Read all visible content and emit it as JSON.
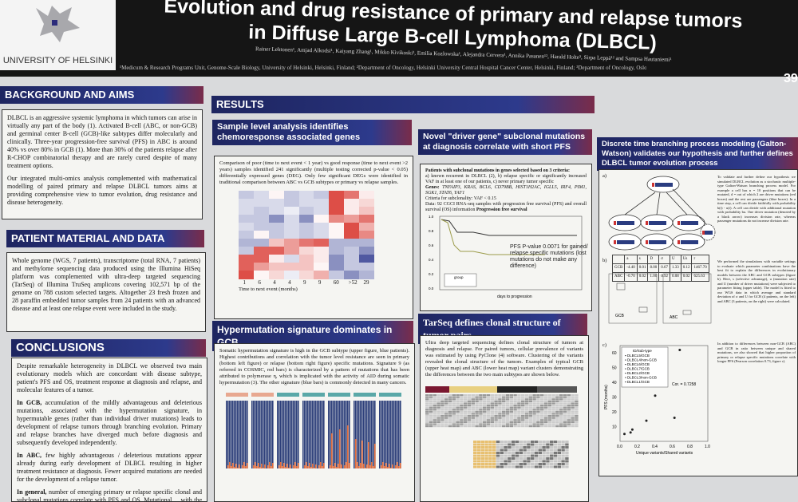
{
  "header": {
    "logo_text": "UNIVERSITY OF HELSINKI",
    "title_line1": "Evolution and drug resistance of primary and relapse tumors",
    "title_line2": "in Diffuse Large B-cell Lymphoma (DLBCL)",
    "authors": "Rainer Lehtonen¹, Amjad Alkodsi¹, Kaiyang Zhang¹, Mikko Kivikoski¹, Emilia Kozlowska¹, Alejandra Cervera¹, Annika Pasanen¹², Harald Holte³, Sirpa Leppä¹² and Sampsa Hautaniemi¹",
    "affiliations": "¹Medicum & Research Programs Unit, Genome-Scale Biology, University of Helsinki, Helsinki, Finland; ²Department of Oncology, Helsinki University Central Hospital Cancer Center, Helsinki, Finland; ³Department of Oncology, Oslo University Hospital, Oslo, Norway",
    "board_number": "39"
  },
  "background": {
    "heading": "BACKGROUND AND AIMS",
    "p1": "DLBCL is an aggressive systemic lymphoma in which tumors can arise in virtually any part of the body (1). Activated B-cell (ABC, or non-GCB) and germinal center B-cell (GCB)-like subtypes differ molecularly and clinically. Three-year progression-free survival (PFS) in ABC is around 40% vs over 80% in GCB (1). More than 30% of the patients relapse after R-CHOP combinatorial therapy and are rarely cured despite of many treatment options.",
    "p2": "Our integrated multi-omics analysis complemented with mathematical modelling of paired primary and relapse DLBCL tumors aims at providing comprehensive view to tumor evolution, drug resistance and disease heterogeneity."
  },
  "patient": {
    "heading": "PATIENT MATERIAL AND DATA",
    "p1": "Whole genome (WGS, 7 patients), transcriptome (total RNA, 7 patients) and methylome sequencing data produced using the Illumina HiSeq platform was complemented with ultra-deep targeted sequencing (TarSeq) of Illumina TruSeq amplicons covering 102,571 bp of the genome on 788 custom selected targets. Altogether 23 fresh frozen and 28 paraffin embedded tumor samples from 24 patients with an advanced disease and at least one relapse event were included in the study."
  },
  "conclusions": {
    "heading": "CONCLUSIONS",
    "p1": "Despite remarkable heterogeneity in DLBCL we observed two main evolutionary models which are concordant with disease subtype, patient's PFS and OS, treatment response at diagnosis and relapse, and molecular features of a tumor.",
    "p2_bold": "In GCB,",
    "p2": " accumulation of the mildly advantageous and deleterious mutations, associated with the hypermutation signature, in hypermutable genes (rather than individual driver mutations) leads to development of relapse tumors through branching evolution. Primary and relapse branches have diverged much before diagnosis and subsequently developed independently.",
    "p3_bold": "In ABC,",
    "p3": " few highly advantageous / deleterious mutations appear already during early development of DLBCL resulting in higher treatment resistance at diagnosis. Fewer acquired mutations are needed for the development of a relapse tumor.",
    "p4_bold": "In general,",
    "p4": " number of emerging primary or relapse specific clonal and subclonal mutations correlate with PFS and OS. Mutational ... with the inferred evolutionary models ... of the somatic"
  },
  "results": {
    "heading": "RESULTS"
  },
  "sample": {
    "heading": "Sample level analysis identifies chemoresponse associated genes",
    "text": "Comparison of poor (time to next event < 1 year) vs good response (time to next event >2 years) samples identified 241 significantly (multiple testing corrected p-value < 0.05) differentially expressed genes (DEG). Only few significant DEGs were identified in traditional comparison between ABC vs GCB subtypes or primary vs relapse samples.",
    "xticks": [
      "1",
      "6",
      "4",
      "4",
      "9",
      "9",
      "60",
      ">52",
      "29"
    ],
    "xlabel": "Time to next event (months)",
    "heatmap": [
      [
        -0.3,
        -0.2,
        0.05,
        -0.3,
        -0.2,
        -0.3,
        0.9,
        0.7,
        0.1
      ],
      [
        -0.2,
        -0.2,
        -0.2,
        -0.3,
        -0.2,
        -0.2,
        0.9,
        0.1,
        0.2
      ],
      [
        -0.2,
        -0.3,
        -0.2,
        -0.1,
        -0.3,
        -0.2,
        0.9,
        0.1,
        0.3
      ],
      [
        -0.3,
        -0.3,
        -0.6,
        -0.2,
        -0.6,
        0.05,
        0.6,
        0.5,
        0.7
      ],
      [
        -0.2,
        -0.3,
        -0.3,
        -0.2,
        -0.3,
        -0.2,
        0.05,
        0.9,
        0.4
      ],
      [
        -0.3,
        0.05,
        -0.3,
        -0.2,
        -0.3,
        -0.2,
        0.05,
        0.9,
        0.6
      ],
      [
        -0.4,
        -0.4,
        0.3,
        0.5,
        0.7,
        0.8,
        -0.4,
        -0.4,
        -0.4
      ],
      [
        -0.3,
        0.8,
        0.8,
        0.5,
        0.2,
        0.1,
        -0.4,
        -0.3,
        -0.6
      ],
      [
        0.8,
        0.8,
        0.1,
        -0.2,
        0.3,
        0.1,
        -0.6,
        -0.3,
        -0.9
      ],
      [
        0.8,
        0.5,
        0.3,
        0.3,
        0.3,
        0.05,
        -0.6,
        -0.3,
        -0.3
      ],
      [
        0.9,
        0.05,
        0.2,
        -0.1,
        0.2,
        0.4,
        -0.3,
        -0.6,
        -0.4
      ]
    ]
  },
  "hyper": {
    "heading": "Hypermutation signature dominates in GCB",
    "text": "Somatic hypermutation signature is high in the GCB subtype (upper figure, blue patients). Highest contributions and correlation with the tumor level resistance are seen in primary (bottom left figure) or relapse (bottom right figure) specific mutations. Signature 9 (as referred in COSMIC, red bars) is characterized by a pattern of mutations that has been attributed to polymerase η, which is implicated with the activity of AID during somatic hypermutation (3). The other signature (blue bars) is commonly detected in many cancers."
  },
  "driver": {
    "heading": "Novel \"driver gene\" subclonal mutations at diagnosis correlate with short PFS",
    "criteria_title": "Patients with subclonal mutations in genes selected based on 3 criteria:",
    "criteria": "a) known recurrent in DLBCL (2), b) relapse specific or significantly increased VAF in at least one of our patients, c) never primary tumor specific",
    "genes_label": "Genes:",
    "genes": "TNFAIP3, KRAS, BCL6, CD79BB, HIST1H2AC, IGLL5, IRF4, PIM1, SGK1, STAT6, YAF1",
    "subclonality": "Criteria for subclonality: VAF < 0.15",
    "data": "Data: 92 CGCI RNA-seq samples with progression free survival (PFS) and overall survival (OS) information",
    "plot_title": "Progression free survival",
    "pvalue": "PFS P-value 0.0071 for gained/ relapse specific mutations (lost mutations do not make any difference)",
    "legend_title": "group",
    "xlabel": "days to progression",
    "yticks": [
      "0.0",
      "0.2",
      "0.4",
      "0.6",
      "0.8",
      "1.0"
    ]
  },
  "tarseq": {
    "heading": "TarSeq defines clonal structure of tumor pairs",
    "text": "Ultra deep targeted sequencing defines clonal structure of tumors at diagnosis and relapse. For paired tumors, cellular prevalence of variants was estimated by using PyClone (4) software. Clustering of the variants revealed the clonal structure of the tumors. Examples of typical GCB (upper heat map) and ABC (lower heat map) variant clusters demonstrating the differences between the two main subtypes are shown below."
  },
  "model": {
    "heading": "Discrete time branching process modeling (Galton-Watson) validates our hypothesis and further defines DLBCL tumor evolution process",
    "a_label": "a)",
    "b_label": "b)",
    "c_label": "c)",
    "text1": "To validate and further define our hypothesis we simulated DLBCL evolution as a stochastic multiple-type Galton-Watson branching process model. For example a cell has n = 10 positions that can be mutated, d = out of which 2 are driver mutations (red boxes) and the rest are passengers (blue boxes). In a time step, a cell can divide faithfully with probability b(i) - u(i). A cell can divide with additional mutation with probability bu. One driver mutation (denoted by a black arrow) increases division rate, whereas passenger mutations do not increase division rate.",
    "text2": "We performed the simulations with variable settings to evaluate which parameter combinations have the best fit to explain the differences in evolutionary models between the ABC and GCB subtypes (figure b). Here, s (selective advantage), u (mutation rate) and U (number of driver mutations) were subjected to parameter fitting (upper table). The model is fitted to our WGS data in which average and standard deviation of σ and U for GCB (4 patients, on the left) and ABC (3 patients, on the right) were calculated.",
    "text3": "In addition to differences between non-GCB (ABC) and GCB in ratio between unique and shared mutations, we also showed that higher proportion of primary or relapse specific mutations correlate with longer PFS (Pearson correlation 0.73, figure c).",
    "table_header": [
      "",
      "a",
      "s",
      "D",
      "σ",
      "U",
      "Us",
      "r"
    ],
    "table_rows": [
      [
        "GCB",
        "-4.40",
        "0.01",
        "8.00",
        "0.67",
        "1.33",
        "0.12",
        "1467.70"
      ],
      [
        "ABC",
        "-0.70",
        "0.02",
        "1.00",
        "0.92",
        "0.08",
        "0.02",
        "625.63"
      ]
    ],
    "box_gcb": "GCB",
    "box_abc": "ABC",
    "scatter_legend_title": "ID/Sub-type",
    "scatter_legend": [
      "DLBCL5/GCB",
      "DLBCL4/non-GCB",
      "DLBCL6/GCB",
      "DLBCL7/GCB",
      "DLBCL2/GCB",
      "DLBCL3/non-GCB",
      "DLBCL1/GCB"
    ],
    "cor": "Cor. = 0.7258",
    "ylabel": "PFS (months)",
    "xlabel": "Unique variants/Shared variants",
    "xticks": [
      "0.0",
      "0.2",
      "0.4",
      "0.6",
      "0.8",
      "1.0"
    ],
    "yticks": [
      "10",
      "20",
      "30",
      "40",
      "50",
      "60"
    ],
    "points": [
      [
        0.05,
        5
      ],
      [
        0.12,
        6
      ],
      [
        0.14,
        8
      ],
      [
        0.3,
        14
      ],
      [
        0.4,
        31
      ],
      [
        0.62,
        16
      ],
      [
        0.68,
        62
      ]
    ]
  },
  "colors": {
    "header_blue": "#1e2560",
    "heat_red": "#d93a32",
    "heat_blue": "#2f3b8c",
    "poster_bg": "#d9dadc"
  }
}
